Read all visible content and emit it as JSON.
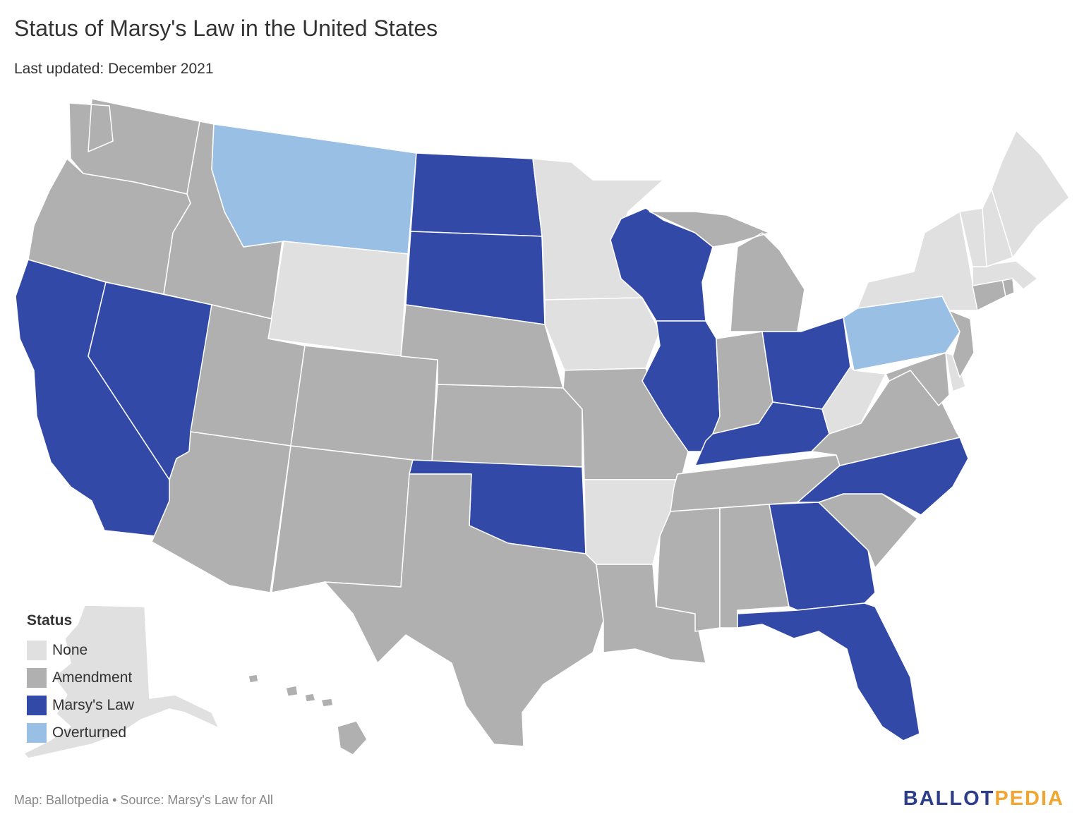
{
  "title": "Status of Marsy's Law in the United States",
  "subtitle": "Last updated: December 2021",
  "legend": {
    "title": "Status",
    "items": [
      {
        "label": "None",
        "color": "#e0e0e0"
      },
      {
        "label": "Amendment",
        "color": "#b0b0b0"
      },
      {
        "label": "Marsy's Law",
        "color": "#3249a8"
      },
      {
        "label": "Overturned",
        "color": "#99bfe4"
      }
    ]
  },
  "footer": {
    "credit": "Map: Ballotpedia • Source: Marsy's Law for All",
    "brand_part1": "BALLOT",
    "brand_part2": "PEDIA",
    "brand_color1": "#2c3e8a",
    "brand_color2": "#f0a630"
  },
  "states": {
    "none": [
      "Alaska",
      "Wyoming",
      "Minnesota",
      "Iowa",
      "Arkansas",
      "West Virginia",
      "Maine",
      "New Hampshire",
      "Vermont",
      "New York",
      "Massachusetts",
      "Delaware"
    ],
    "amendment": [
      "Washington",
      "Oregon",
      "Idaho",
      "Utah",
      "Arizona",
      "Colorado",
      "New Mexico",
      "Texas",
      "Nebraska",
      "Kansas",
      "Missouri",
      "Louisiana",
      "Mississippi",
      "Alabama",
      "Tennessee",
      "Indiana",
      "Michigan",
      "Virginia",
      "Maryland",
      "New Jersey",
      "Connecticut",
      "Rhode Island",
      "South Carolina",
      "Hawaii"
    ],
    "marsys_law": [
      "California",
      "Nevada",
      "North Dakota",
      "South Dakota",
      "Oklahoma",
      "Wisconsin",
      "Illinois",
      "Kentucky",
      "Ohio",
      "Georgia",
      "Florida",
      "North Carolina"
    ],
    "overturned": [
      "Montana",
      "Pennsylvania"
    ]
  }
}
